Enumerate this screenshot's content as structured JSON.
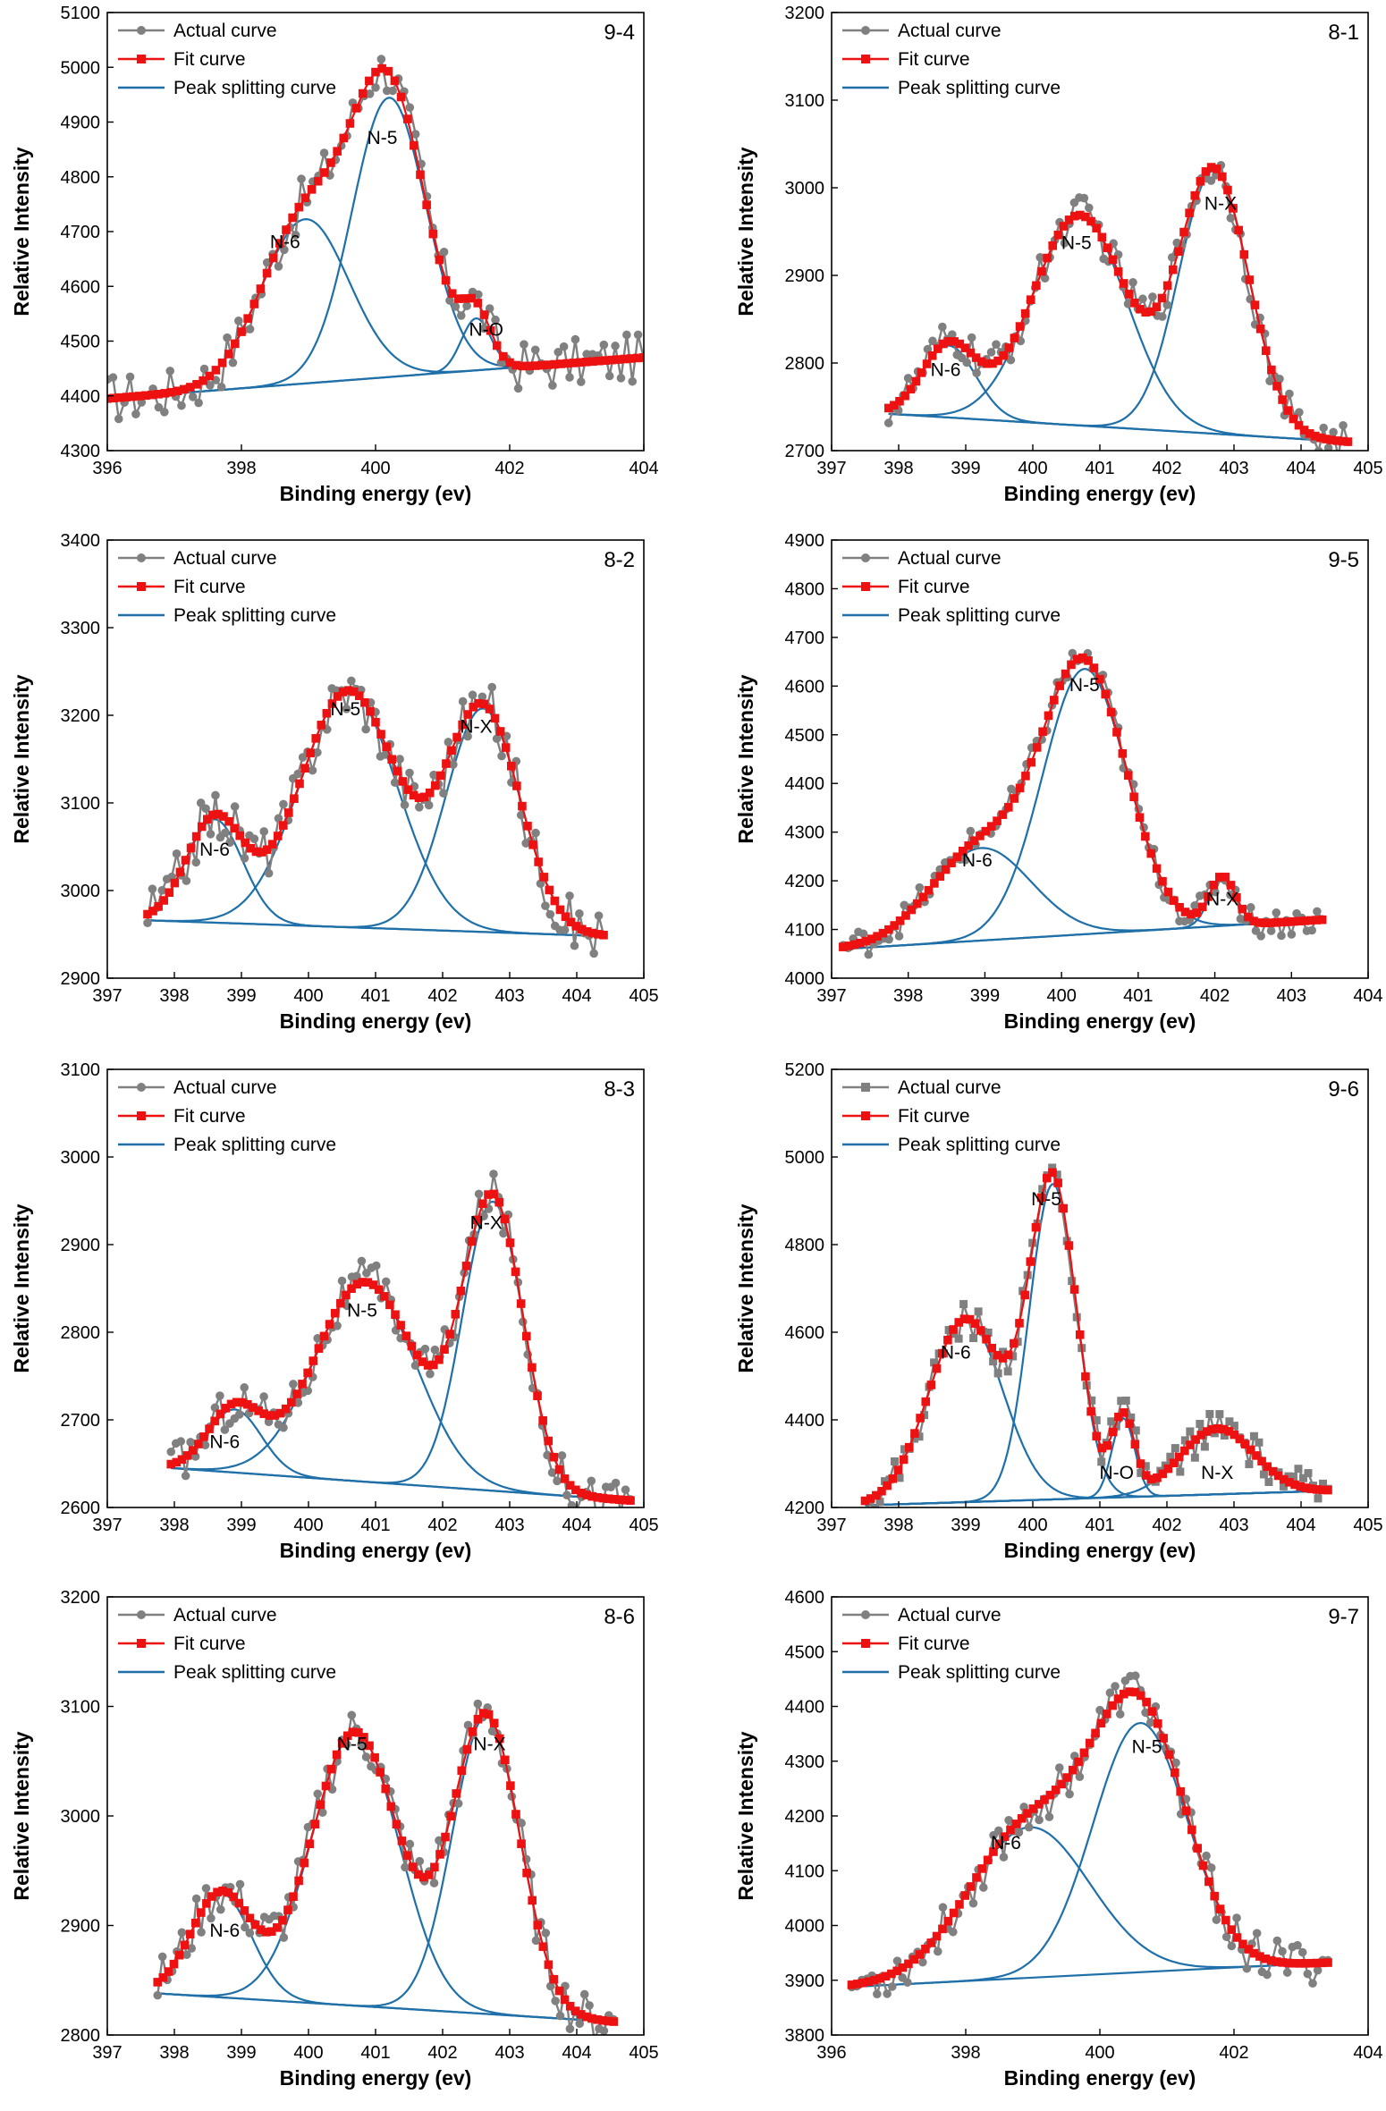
{
  "figure": {
    "x_label": "Binding energy (ev)",
    "y_label": "Relative Intensity",
    "legend": {
      "actual": "Actual curve",
      "fit": "Fit curve",
      "peak": "Peak splitting curve"
    }
  },
  "colors": {
    "actual": "#808080",
    "fit": "#ee1111",
    "peak": "#1f6fa8",
    "axis": "#000000"
  },
  "chart_data": [
    {
      "type": "line",
      "id": "9-4",
      "sample_label": "9-4",
      "xlabel": "Binding energy (ev)",
      "ylabel": "Relative Intensity",
      "xlim": [
        396,
        404
      ],
      "ylim": [
        4300,
        5100
      ],
      "xticks": [
        396,
        398,
        400,
        402,
        404
      ],
      "yticks": [
        4300,
        4400,
        4500,
        4600,
        4700,
        4800,
        4900,
        5000,
        5100
      ],
      "actual_marker": "circle",
      "noise": 45,
      "baseline": {
        "start": 4395,
        "end": 4470
      },
      "range": [
        396,
        404
      ],
      "peaks": [
        {
          "name": "N-6",
          "center": 398.95,
          "height": 300,
          "width": 0.65,
          "label_x": 398.65,
          "label_y": 4670
        },
        {
          "name": "N-5",
          "center": 400.2,
          "height": 510,
          "width": 0.55,
          "label_x": 400.1,
          "label_y": 4860
        },
        {
          "name": "N-O",
          "center": 401.5,
          "height": 95,
          "width": 0.22,
          "label_x": 401.65,
          "label_y": 4510
        }
      ]
    },
    {
      "type": "line",
      "id": "8-1",
      "sample_label": "8-1",
      "xlabel": "Binding energy (ev)",
      "ylabel": "Relative Intensity",
      "xlim": [
        397,
        405
      ],
      "ylim": [
        2700,
        3200
      ],
      "xticks": [
        397,
        398,
        399,
        400,
        401,
        402,
        403,
        404,
        405
      ],
      "yticks": [
        2700,
        2800,
        2900,
        3000,
        3100,
        3200
      ],
      "actual_marker": "circle",
      "noise": 22,
      "baseline": {
        "start": 2742,
        "end": 2710
      },
      "range": [
        397.85,
        404.7
      ],
      "peaks": [
        {
          "name": "N-6",
          "center": 398.75,
          "height": 82,
          "width": 0.4,
          "label_x": 398.7,
          "label_y": 2785
        },
        {
          "name": "N-5",
          "center": 400.7,
          "height": 240,
          "width": 0.7,
          "label_x": 400.65,
          "label_y": 2930
        },
        {
          "name": "N-X",
          "center": 402.7,
          "height": 300,
          "width": 0.52,
          "label_x": 402.8,
          "label_y": 2975
        }
      ]
    },
    {
      "type": "line",
      "id": "8-2",
      "sample_label": "8-2",
      "xlabel": "Binding energy (ev)",
      "ylabel": "Relative Intensity",
      "xlim": [
        397,
        405
      ],
      "ylim": [
        2900,
        3400
      ],
      "xticks": [
        397,
        398,
        399,
        400,
        401,
        402,
        403,
        404,
        405
      ],
      "yticks": [
        2900,
        3000,
        3100,
        3200,
        3300,
        3400
      ],
      "actual_marker": "circle",
      "noise": 30,
      "baseline": {
        "start": 2966,
        "end": 2948
      },
      "range": [
        397.6,
        404.4
      ],
      "peaks": [
        {
          "name": "N-6",
          "center": 398.6,
          "height": 118,
          "width": 0.42,
          "label_x": 398.6,
          "label_y": 3040
        },
        {
          "name": "N-5",
          "center": 400.6,
          "height": 270,
          "width": 0.72,
          "label_x": 400.55,
          "label_y": 3200
        },
        {
          "name": "N-X",
          "center": 402.6,
          "height": 255,
          "width": 0.55,
          "label_x": 402.5,
          "label_y": 3180
        }
      ]
    },
    {
      "type": "line",
      "id": "9-5",
      "sample_label": "9-5",
      "xlabel": "Binding energy (ev)",
      "ylabel": "Relative Intensity",
      "xlim": [
        397,
        404
      ],
      "ylim": [
        4000,
        4900
      ],
      "xticks": [
        397,
        398,
        399,
        400,
        401,
        402,
        403,
        404
      ],
      "yticks": [
        4000,
        4100,
        4200,
        4300,
        4400,
        4500,
        4600,
        4700,
        4800,
        4900
      ],
      "actual_marker": "circle",
      "noise": 30,
      "baseline": {
        "start": 4060,
        "end": 4120
      },
      "range": [
        397.15,
        403.4
      ],
      "peaks": [
        {
          "name": "N-6",
          "center": 398.95,
          "height": 190,
          "width": 0.65,
          "label_x": 398.9,
          "label_y": 4230
        },
        {
          "name": "N-5",
          "center": 400.3,
          "height": 545,
          "width": 0.55,
          "label_x": 400.3,
          "label_y": 4590
        },
        {
          "name": "N-X",
          "center": 402.1,
          "height": 100,
          "width": 0.17,
          "label_x": 402.1,
          "label_y": 4150
        }
      ]
    },
    {
      "type": "line",
      "id": "8-3",
      "sample_label": "8-3",
      "xlabel": "Binding energy (ev)",
      "ylabel": "Relative Intensity",
      "xlim": [
        397,
        405
      ],
      "ylim": [
        2600,
        3100
      ],
      "xticks": [
        397,
        398,
        399,
        400,
        401,
        402,
        403,
        404,
        405
      ],
      "yticks": [
        2600,
        2700,
        2800,
        2900,
        3000,
        3100
      ],
      "actual_marker": "circle",
      "noise": 25,
      "baseline": {
        "start": 2645,
        "end": 2608
      },
      "range": [
        397.95,
        404.8
      ],
      "peaks": [
        {
          "name": "N-6",
          "center": 398.9,
          "height": 72,
          "width": 0.4,
          "label_x": 398.75,
          "label_y": 2668
        },
        {
          "name": "N-5",
          "center": 400.85,
          "height": 228,
          "width": 0.75,
          "label_x": 400.8,
          "label_y": 2818
        },
        {
          "name": "N-X",
          "center": 402.75,
          "height": 330,
          "width": 0.45,
          "label_x": 402.65,
          "label_y": 2918
        }
      ]
    },
    {
      "type": "line",
      "id": "9-6",
      "sample_label": "9-6",
      "xlabel": "Binding energy (ev)",
      "ylabel": "Relative Intensity",
      "xlim": [
        397,
        405
      ],
      "ylim": [
        4200,
        5200
      ],
      "xticks": [
        397,
        398,
        399,
        400,
        401,
        402,
        403,
        404,
        405
      ],
      "yticks": [
        4200,
        4400,
        4600,
        4800,
        5000,
        5200
      ],
      "actual_marker": "square",
      "noise": 40,
      "baseline": {
        "start": 4205,
        "end": 4238
      },
      "range": [
        397.5,
        404.4
      ],
      "peaks": [
        {
          "name": "N-6",
          "center": 399.0,
          "height": 418,
          "width": 0.55,
          "label_x": 398.85,
          "label_y": 4540
        },
        {
          "name": "N-5",
          "center": 400.3,
          "height": 720,
          "width": 0.35,
          "label_x": 400.2,
          "label_y": 4890
        },
        {
          "name": "N-O",
          "center": 401.35,
          "height": 180,
          "width": 0.17,
          "label_x": 401.25,
          "label_y": 4265
        },
        {
          "name": "N-X",
          "center": 402.75,
          "height": 150,
          "width": 0.55,
          "label_x": 402.75,
          "label_y": 4265
        }
      ]
    },
    {
      "type": "line",
      "id": "8-6",
      "sample_label": "8-6",
      "xlabel": "Binding energy (ev)",
      "ylabel": "Relative Intensity",
      "xlim": [
        397,
        405
      ],
      "ylim": [
        2800,
        3200
      ],
      "xticks": [
        397,
        398,
        399,
        400,
        401,
        402,
        403,
        404,
        405
      ],
      "yticks": [
        2800,
        2900,
        3000,
        3100,
        3200
      ],
      "actual_marker": "circle",
      "noise": 22,
      "baseline": {
        "start": 2838,
        "end": 2812
      },
      "range": [
        397.75,
        404.55
      ],
      "peaks": [
        {
          "name": "N-6",
          "center": 398.7,
          "height": 95,
          "width": 0.45,
          "label_x": 398.75,
          "label_y": 2890
        },
        {
          "name": "N-5",
          "center": 400.7,
          "height": 250,
          "width": 0.65,
          "label_x": 400.65,
          "label_y": 3060
        },
        {
          "name": "N-X",
          "center": 402.65,
          "height": 272,
          "width": 0.5,
          "label_x": 402.7,
          "label_y": 3060
        }
      ]
    },
    {
      "type": "line",
      "id": "9-7",
      "sample_label": "9-7",
      "xlabel": "Binding energy (ev)",
      "ylabel": "Relative Intensity",
      "xlim": [
        396,
        404
      ],
      "ylim": [
        3800,
        4600
      ],
      "xticks": [
        396,
        398,
        400,
        402,
        404
      ],
      "yticks": [
        3800,
        3900,
        4000,
        4100,
        4200,
        4300,
        4400,
        4500,
        4600
      ],
      "actual_marker": "circle",
      "noise": 40,
      "baseline": {
        "start": 3888,
        "end": 3932
      },
      "range": [
        396.3,
        403.4
      ],
      "peaks": [
        {
          "name": "N-6",
          "center": 398.95,
          "height": 275,
          "width": 0.9,
          "label_x": 398.6,
          "label_y": 4140
        },
        {
          "name": "N-5",
          "center": 400.6,
          "height": 455,
          "width": 0.7,
          "label_x": 400.7,
          "label_y": 4315
        }
      ]
    }
  ]
}
